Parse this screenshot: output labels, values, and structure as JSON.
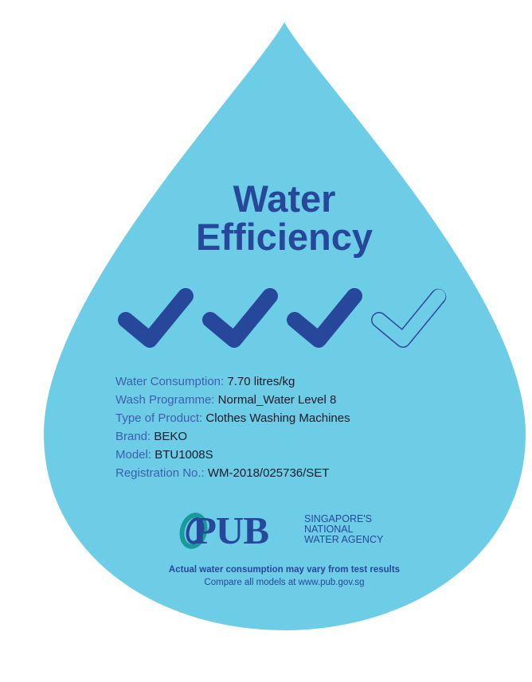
{
  "colors": {
    "drop": "#6dcde6",
    "accent": "#27479a"
  },
  "title": {
    "line1": "Water",
    "line2": "Efficiency"
  },
  "rating": {
    "ticks_filled": 3,
    "ticks_total": 4,
    "icon": "checkmark-icon"
  },
  "details": [
    {
      "label": "Water Consumption:",
      "value": "7.70 litres/kg"
    },
    {
      "label": "Wash Programme:",
      "value": "Normal_Water Level 8"
    },
    {
      "label": "Type of Product:",
      "value": "Clothes Washing Machines"
    },
    {
      "label": "Brand:",
      "value": "BEKO"
    },
    {
      "label": "Model:",
      "value": "BTU1008S"
    },
    {
      "label": "Registration No.:",
      "value": "WM-2018/025736/SET"
    }
  ],
  "logo": {
    "name": "PUB",
    "tagline1": "SINGAPORE'S",
    "tagline2": "NATIONAL",
    "tagline3": "WATER AGENCY"
  },
  "footer": {
    "disclaimer": "Actual water consumption may vary from test results",
    "compare": "Compare all models at www.pub.gov.sg"
  }
}
